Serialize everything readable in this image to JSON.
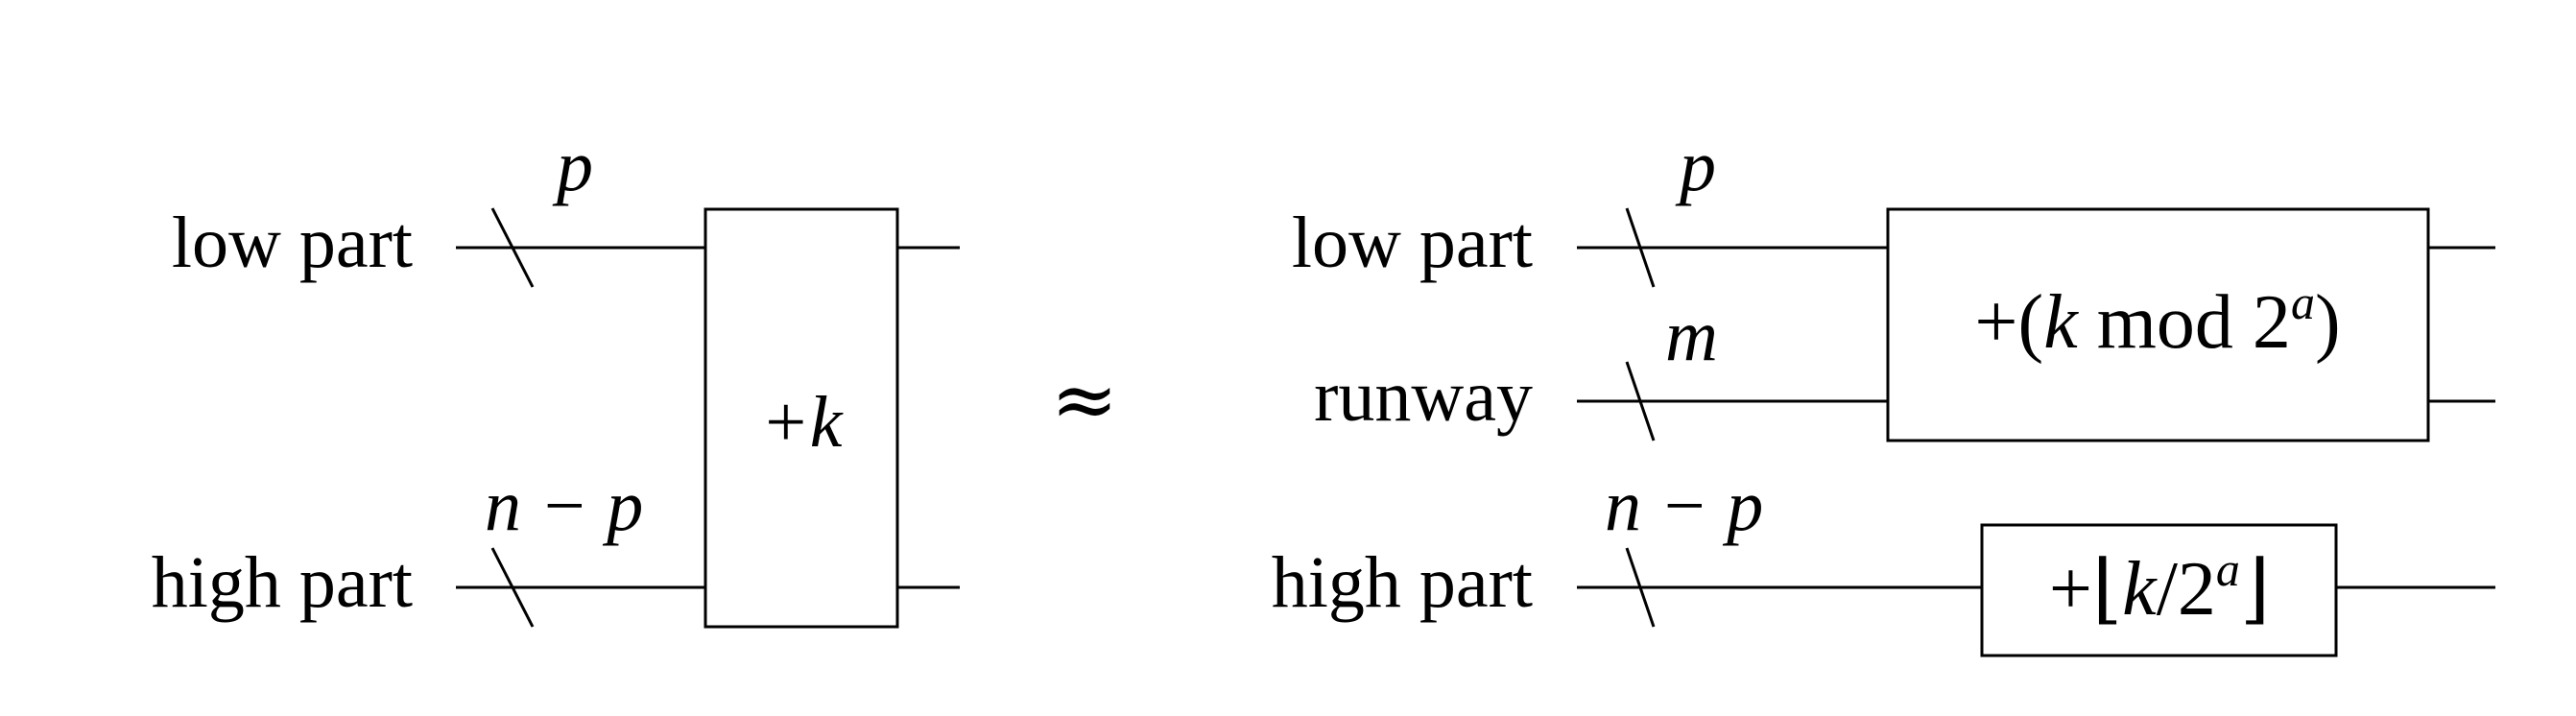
{
  "left": {
    "wires": [
      {
        "label": "low part",
        "width": "p"
      },
      {
        "label": "high part",
        "width": "n − p"
      }
    ],
    "gate": "+k"
  },
  "relation": "≈",
  "right": {
    "wires": [
      {
        "label": "low part",
        "width": "p"
      },
      {
        "label": "runway",
        "width": "m"
      },
      {
        "label": "high part",
        "width": "n − p"
      }
    ],
    "gate_mod": {
      "plus": "+(",
      "k": "k",
      "mod": " mod 2",
      "exp": "a",
      "close": ")"
    },
    "gate_floor": {
      "plus": "+⌊",
      "k": "k",
      "div": "/2",
      "exp": "a",
      "close": "⌋"
    }
  }
}
